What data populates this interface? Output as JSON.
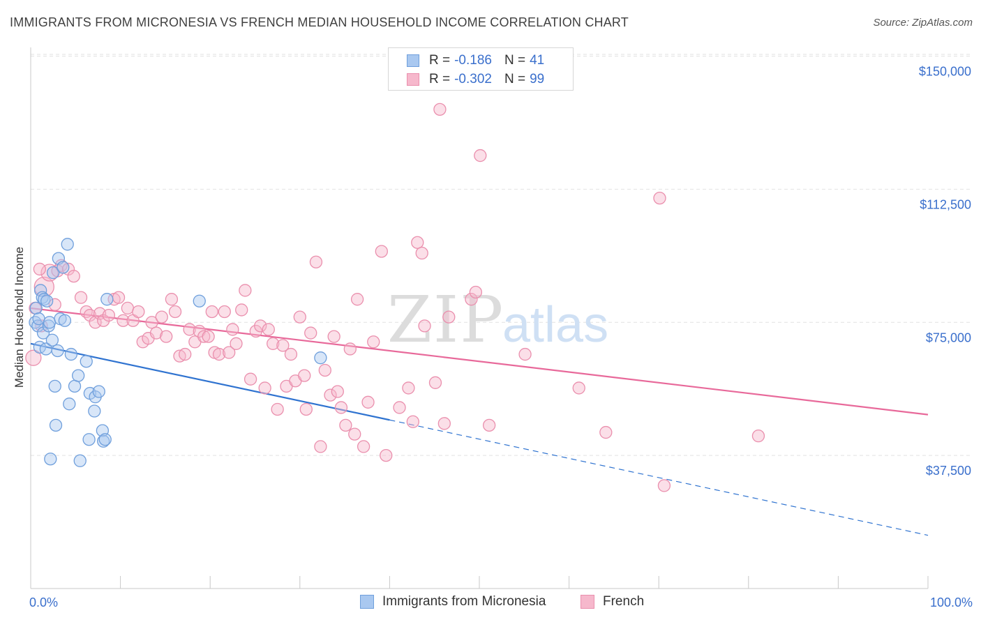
{
  "title": "IMMIGRANTS FROM MICRONESIA VS FRENCH MEDIAN HOUSEHOLD INCOME CORRELATION CHART",
  "source": "Source: ZipAtlas.com",
  "watermark": {
    "zip": "ZIP",
    "atlas": "atlas"
  },
  "legend": {
    "rows": [
      {
        "r_label": "R =",
        "r_value": "-0.186",
        "n_label": "N =",
        "n_value": "41"
      },
      {
        "r_label": "R =",
        "r_value": "-0.302",
        "n_label": "N =",
        "n_value": "99"
      }
    ]
  },
  "colors": {
    "micronesia_fill": "#a9c8f0",
    "micronesia_stroke": "#6f9fdc",
    "micronesia_line": "#2f73d0",
    "french_fill": "#f6b8cc",
    "french_stroke": "#ea8fad",
    "french_line": "#e8699a",
    "axis_text": "#3a6fcc",
    "grid": "#e2e2e2"
  },
  "chart_data": {
    "type": "scatter",
    "title": "IMMIGRANTS FROM MICRONESIA VS FRENCH MEDIAN HOUSEHOLD INCOME CORRELATION CHART",
    "xlabel": "",
    "ylabel": "Median Household Income",
    "xlim": [
      0,
      100
    ],
    "ylim": [
      0,
      156000
    ],
    "x_tick_labels": [
      "0.0%",
      "100.0%"
    ],
    "y_ticks": [
      37500,
      75000,
      112500,
      150000
    ],
    "y_tick_labels": [
      "$37,500",
      "$75,000",
      "$112,500",
      "$150,000"
    ],
    "grid": true,
    "legend_position": "top-center",
    "series": [
      {
        "name": "Immigrants from Micronesia",
        "r": -0.186,
        "n": 41,
        "trend": {
          "x0": 0,
          "y0": 69000,
          "x1": 40,
          "y1": 47500,
          "dashed_to_x": 100,
          "dashed_to_y": 15000
        },
        "points": [
          [
            0.5,
            75000
          ],
          [
            0.6,
            79000
          ],
          [
            0.8,
            74000
          ],
          [
            0.9,
            76000
          ],
          [
            1.0,
            68000
          ],
          [
            1.1,
            84000
          ],
          [
            1.3,
            82000
          ],
          [
            1.4,
            72000
          ],
          [
            1.5,
            81500
          ],
          [
            1.7,
            67500
          ],
          [
            1.8,
            81000
          ],
          [
            2.0,
            74000
          ],
          [
            2.1,
            75000
          ],
          [
            2.2,
            36500
          ],
          [
            2.4,
            70000
          ],
          [
            2.5,
            89000
          ],
          [
            2.7,
            57000
          ],
          [
            2.8,
            46000
          ],
          [
            3.0,
            67000
          ],
          [
            3.1,
            93000
          ],
          [
            3.3,
            76000
          ],
          [
            3.6,
            90500
          ],
          [
            3.8,
            75500
          ],
          [
            4.1,
            97000
          ],
          [
            4.3,
            52000
          ],
          [
            4.5,
            66000
          ],
          [
            4.9,
            57000
          ],
          [
            5.3,
            60000
          ],
          [
            5.5,
            36000
          ],
          [
            6.2,
            64000
          ],
          [
            6.5,
            42000
          ],
          [
            6.6,
            55000
          ],
          [
            7.1,
            50000
          ],
          [
            7.2,
            54000
          ],
          [
            7.6,
            55500
          ],
          [
            8.0,
            44500
          ],
          [
            8.1,
            41500
          ],
          [
            8.3,
            42000
          ],
          [
            8.5,
            81500
          ],
          [
            18.8,
            81000
          ],
          [
            32.3,
            65000
          ]
        ]
      },
      {
        "name": "French",
        "r": -0.302,
        "n": 99,
        "trend": {
          "x0": 0,
          "y0": 79000,
          "x1": 100,
          "y1": 49000
        },
        "points": [
          [
            0.3,
            65000
          ],
          [
            0.5,
            79000
          ],
          [
            1.2,
            74000
          ],
          [
            1.5,
            85000
          ],
          [
            2.1,
            89000
          ],
          [
            3.0,
            89500
          ],
          [
            3.4,
            91000
          ],
          [
            4.2,
            90000
          ],
          [
            4.8,
            88000
          ],
          [
            5.6,
            82000
          ],
          [
            6.2,
            78000
          ],
          [
            6.6,
            77000
          ],
          [
            7.2,
            75000
          ],
          [
            7.7,
            77500
          ],
          [
            8.1,
            75500
          ],
          [
            8.7,
            77000
          ],
          [
            9.3,
            81500
          ],
          [
            9.8,
            82000
          ],
          [
            10.3,
            75500
          ],
          [
            10.8,
            79000
          ],
          [
            11.4,
            75500
          ],
          [
            12.0,
            78000
          ],
          [
            12.5,
            69500
          ],
          [
            13.1,
            70500
          ],
          [
            13.5,
            75000
          ],
          [
            14.0,
            72000
          ],
          [
            14.6,
            76500
          ],
          [
            15.1,
            71000
          ],
          [
            15.7,
            81500
          ],
          [
            16.1,
            78000
          ],
          [
            16.6,
            65500
          ],
          [
            17.2,
            66000
          ],
          [
            17.7,
            73000
          ],
          [
            18.3,
            69500
          ],
          [
            18.8,
            72500
          ],
          [
            19.3,
            71000
          ],
          [
            19.8,
            71000
          ],
          [
            20.2,
            78000
          ],
          [
            20.5,
            66500
          ],
          [
            21.0,
            66000
          ],
          [
            21.6,
            78000
          ],
          [
            22.1,
            66500
          ],
          [
            22.5,
            73000
          ],
          [
            22.9,
            69000
          ],
          [
            23.5,
            78500
          ],
          [
            23.9,
            84000
          ],
          [
            24.5,
            59000
          ],
          [
            25.1,
            72500
          ],
          [
            25.6,
            74000
          ],
          [
            26.1,
            56500
          ],
          [
            26.5,
            73000
          ],
          [
            27.0,
            69000
          ],
          [
            27.5,
            50500
          ],
          [
            28.1,
            68500
          ],
          [
            28.5,
            57000
          ],
          [
            29.0,
            66000
          ],
          [
            29.5,
            58500
          ],
          [
            30.0,
            76500
          ],
          [
            30.5,
            60000
          ],
          [
            30.7,
            50500
          ],
          [
            31.2,
            72000
          ],
          [
            31.8,
            92000
          ],
          [
            32.3,
            40000
          ],
          [
            32.8,
            61500
          ],
          [
            33.4,
            54500
          ],
          [
            33.8,
            71000
          ],
          [
            34.2,
            55500
          ],
          [
            34.6,
            51000
          ],
          [
            35.1,
            46000
          ],
          [
            35.6,
            67500
          ],
          [
            36.1,
            43500
          ],
          [
            36.4,
            81500
          ],
          [
            37.1,
            40000
          ],
          [
            37.6,
            52500
          ],
          [
            38.2,
            69500
          ],
          [
            39.1,
            95000
          ],
          [
            39.6,
            37500
          ],
          [
            41.1,
            51000
          ],
          [
            42.1,
            56500
          ],
          [
            42.6,
            47000
          ],
          [
            43.1,
            97500
          ],
          [
            43.6,
            94500
          ],
          [
            43.9,
            74000
          ],
          [
            45.1,
            58000
          ],
          [
            45.6,
            135000
          ],
          [
            46.1,
            46500
          ],
          [
            46.6,
            76500
          ],
          [
            49.1,
            81500
          ],
          [
            49.6,
            83500
          ],
          [
            50.1,
            122000
          ],
          [
            51.1,
            46000
          ],
          [
            55.1,
            66000
          ],
          [
            61.1,
            56500
          ],
          [
            64.1,
            44000
          ],
          [
            70.1,
            110000
          ],
          [
            70.6,
            29000
          ],
          [
            81.1,
            43000
          ],
          [
            1.0,
            90000
          ],
          [
            2.7,
            80000
          ]
        ]
      }
    ]
  },
  "bottom_legend": [
    {
      "label": "Immigrants from Micronesia"
    },
    {
      "label": "French"
    }
  ]
}
